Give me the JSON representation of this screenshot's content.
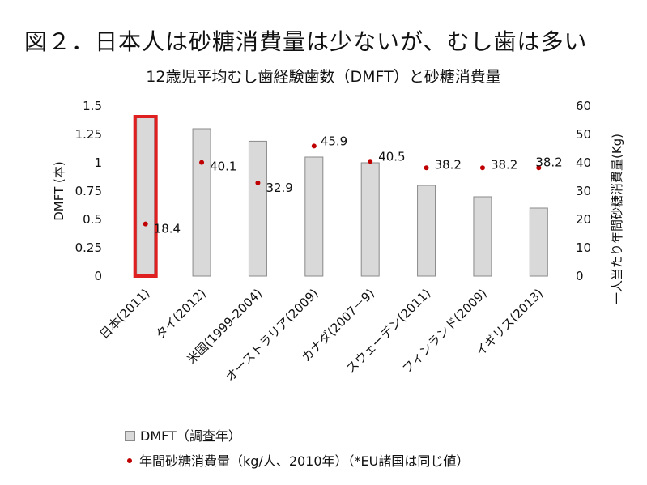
{
  "slide_title": "図２．日本人は砂糖消費量は少ないが、むし歯は多い",
  "chart_data": {
    "type": "bar",
    "title": "12歳児平均むし歯経験歯数（DMFT）と砂糖消費量",
    "categories": [
      "日本(2011)",
      "タイ(2012)",
      "米国(1999-2004)",
      "オーストラリア(2009)",
      "カナダ(2007－9)",
      "スウェーデン(2011)",
      "フィンランド(2009)",
      "イギリス(2013)"
    ],
    "series": [
      {
        "name": "DMFT（調査年）",
        "type": "bar",
        "axis": "left",
        "values": [
          1.4,
          1.3,
          1.19,
          1.05,
          1.0,
          0.8,
          0.7,
          0.6
        ]
      },
      {
        "name": "年間砂糖消費量（kg/人、2010年）（*EU諸国は同じ値）",
        "type": "scatter",
        "axis": "right",
        "values": [
          18.4,
          40.1,
          32.9,
          45.9,
          40.5,
          38.2,
          38.2,
          38.2
        ]
      }
    ],
    "data_labels": [
      "18.4",
      "40.1",
      "32.9",
      "45.9",
      "40.5",
      "38.2",
      "38.2",
      "38.2"
    ],
    "ylabel": "DMFT (本)",
    "ylim": [
      0,
      1.5
    ],
    "yticks": [
      "1.5",
      "1.25",
      "1",
      "0.75",
      "0.5",
      "0.25",
      "0"
    ],
    "y2label": "一人当たり年間砂糖消費量(Kg)",
    "y2lim": [
      0,
      60
    ],
    "y2ticks": [
      "60",
      "50",
      "40",
      "30",
      "20",
      "10",
      "0"
    ],
    "highlight_category": "日本(2011)",
    "grid": false,
    "legend_position": "bottom-left",
    "colors": {
      "bar_fill": "#d9d9d9",
      "bar_stroke": "#8a8a8a",
      "dot": "#c00000",
      "highlight": "#e02020"
    }
  }
}
